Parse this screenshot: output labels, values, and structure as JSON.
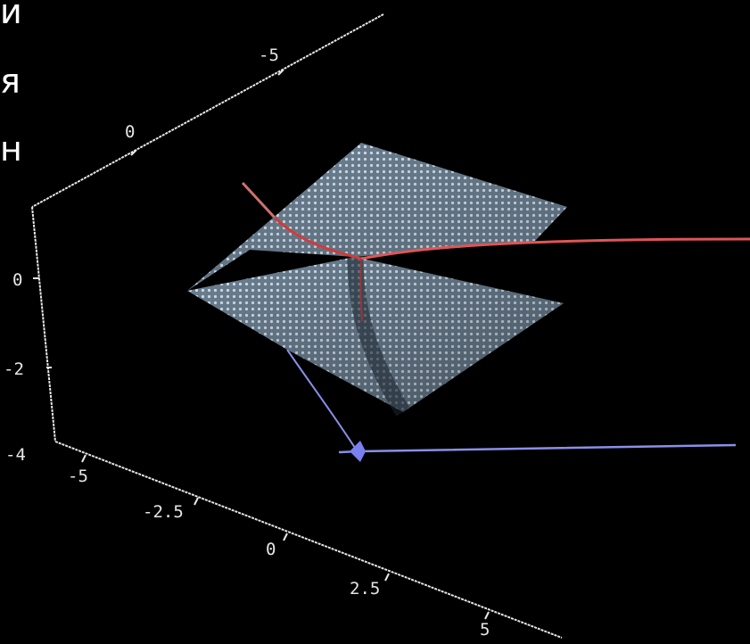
{
  "overlay_text": [
    "и",
    "я",
    "н"
  ],
  "colors": {
    "background": "#000000",
    "axis": "#e6e6e6",
    "surface": "#7f93a6",
    "surface_mesh": "#c8d6e2",
    "fold_curve": "#d23a3a",
    "projection_curve": "#8a8fe8"
  },
  "chart_data": {
    "type": "surface3d",
    "title": "",
    "axes": {
      "x": {
        "label": "",
        "ticks": [
          "-5",
          "0"
        ]
      },
      "y": {
        "label": "",
        "ticks": [
          "-5",
          "-2.5",
          "0",
          "2.5",
          "5"
        ]
      },
      "z": {
        "label": "",
        "ticks": [
          "0",
          "-2",
          "-4"
        ]
      }
    },
    "series": [
      {
        "kind": "surface",
        "description": "folded (cusp catastrophe) surface mesh"
      },
      {
        "kind": "curve",
        "description": "fold curve on surface"
      },
      {
        "kind": "curve",
        "description": "projection of fold curve onto base plane, ending in cusp point"
      }
    ],
    "grid": false,
    "legend": "none"
  }
}
